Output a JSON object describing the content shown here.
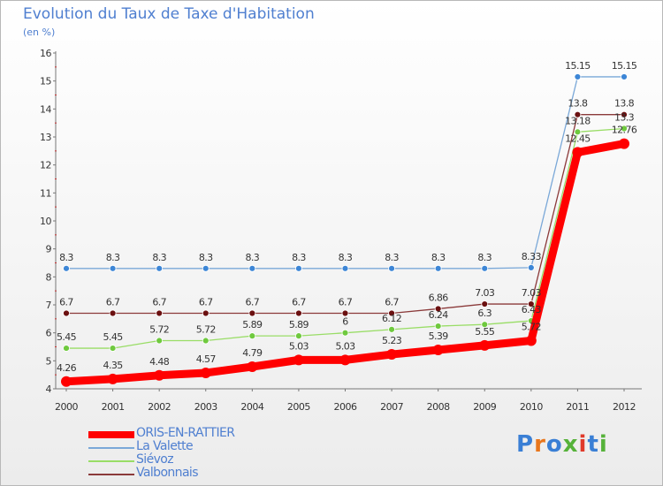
{
  "title": "Evolution du Taux de Taxe d'Habitation",
  "subtitle": "(en %)",
  "logo": {
    "text": "Proxiti",
    "letter_colors": [
      "#3a7fd5",
      "#e8761c",
      "#3a7fd5",
      "#56b23a",
      "#e03a2a",
      "#3a7fd5",
      "#56b23a"
    ]
  },
  "chart_data": {
    "type": "line",
    "x": [
      "2000",
      "2001",
      "2002",
      "2003",
      "2004",
      "2005",
      "2006",
      "2007",
      "2008",
      "2009",
      "2010",
      "2011",
      "2012"
    ],
    "ylim": [
      4,
      16
    ],
    "yticks": [
      "4",
      "5",
      "6",
      "7",
      "8",
      "9",
      "10",
      "11",
      "12",
      "13",
      "14",
      "15",
      "16"
    ],
    "grid": false,
    "legend_position": "bottom-left",
    "series": [
      {
        "name": "ORIS-EN-RATTIER",
        "color": "#ff0000",
        "marker": "#ff0000",
        "values": [
          4.26,
          4.35,
          4.48,
          4.57,
          4.79,
          5.03,
          5.03,
          5.23,
          5.39,
          5.55,
          5.72,
          12.45,
          12.76
        ],
        "labels": [
          "4.26",
          "4.35",
          "4.48",
          "4.57",
          "4.79",
          "5.03",
          "5.03",
          "5.23",
          "5.39",
          "5.55",
          "5.72",
          "12.45",
          "12.76"
        ]
      },
      {
        "name": "La Valette",
        "color": "#7aa8d8",
        "marker": "#3d86d6",
        "values": [
          8.3,
          8.3,
          8.3,
          8.3,
          8.3,
          8.3,
          8.3,
          8.3,
          8.3,
          8.3,
          8.33,
          15.15,
          15.15
        ],
        "labels": [
          "8.3",
          "8.3",
          "8.3",
          "8.3",
          "8.3",
          "8.3",
          "8.3",
          "8.3",
          "8.3",
          "8.3",
          "8.33",
          "15.15",
          "15.15"
        ]
      },
      {
        "name": "Siévoz",
        "color": "#99dd66",
        "marker": "#6fc93e",
        "values": [
          5.45,
          5.45,
          5.72,
          5.72,
          5.89,
          5.89,
          6,
          6.12,
          6.24,
          6.3,
          6.43,
          13.18,
          13.3
        ],
        "labels": [
          "5.45",
          "5.45",
          "5.72",
          "5.72",
          "5.89",
          "5.89",
          "6",
          "6.12",
          "6.24",
          "6.3",
          "6.43",
          "13.18",
          "13.3"
        ]
      },
      {
        "name": "Valbonnais",
        "color": "#8b3a3a",
        "marker": "#6b1010",
        "values": [
          6.7,
          6.7,
          6.7,
          6.7,
          6.7,
          6.7,
          6.7,
          6.7,
          6.86,
          7.03,
          7.03,
          13.8,
          13.8
        ],
        "labels": [
          "6.7",
          "6.7",
          "6.7",
          "6.7",
          "6.7",
          "6.7",
          "6.7",
          "6.7",
          "6.86",
          "7.03",
          "7.03",
          "13.8",
          "13.8"
        ]
      }
    ]
  }
}
